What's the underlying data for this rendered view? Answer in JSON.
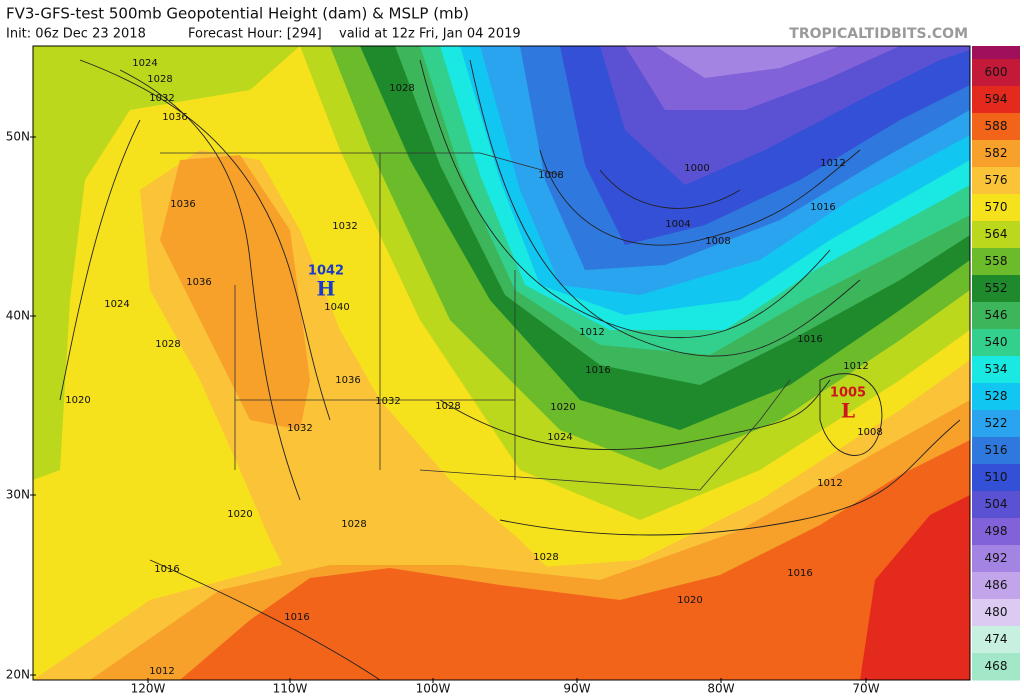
{
  "header": {
    "title": "FV3-GFS-test 500mb Geopotential Height (dam) & MSLP (mb)",
    "init": "Init: 06z Dec 23 2018",
    "forecast_hour": "Forecast Hour: [294]",
    "valid": "valid at 12z Fri, Jan 04 2019",
    "watermark": "TROPICALTIDBITS.COM"
  },
  "colorbar": {
    "values": [
      600,
      594,
      588,
      582,
      576,
      570,
      564,
      558,
      552,
      546,
      540,
      534,
      528,
      522,
      516,
      510,
      504,
      498,
      492,
      486,
      480,
      474,
      468
    ],
    "colors": [
      "#c41a3a",
      "#e42a1c",
      "#f2641a",
      "#f7a02a",
      "#fbc338",
      "#f6e21c",
      "#bcd81c",
      "#6cbb2a",
      "#1f8a2c",
      "#3db55a",
      "#32d08c",
      "#1ae8e2",
      "#12c6f2",
      "#2aa4ee",
      "#2f78de",
      "#3450d6",
      "#5a52d2",
      "#8262d8",
      "#a484e2",
      "#c2a4ea",
      "#dccaf2",
      "#c8f0e0",
      "#a2e8c8"
    ]
  },
  "map": {
    "lat_labels": [
      "50N",
      "40N",
      "30N",
      "20N"
    ],
    "lon_labels": [
      "120W",
      "110W",
      "100W",
      "90W",
      "80W",
      "70W"
    ],
    "pressure_centers": [
      {
        "symbol": "H",
        "value": "1042"
      },
      {
        "symbol": "L",
        "value": "1005"
      }
    ],
    "contour_labels": [
      "1024",
      "1028",
      "1032",
      "1036",
      "1036",
      "1036",
      "1024",
      "1028",
      "1020",
      "1032",
      "1036",
      "1032",
      "1040",
      "1032",
      "1028",
      "1028",
      "1020",
      "1028",
      "1016",
      "1016",
      "1012",
      "1028",
      "1024",
      "1020",
      "1016",
      "1012",
      "1008",
      "1004",
      "1000",
      "1008",
      "1012",
      "1016",
      "1016",
      "1012",
      "1008",
      "1012",
      "1016",
      "1020"
    ]
  }
}
